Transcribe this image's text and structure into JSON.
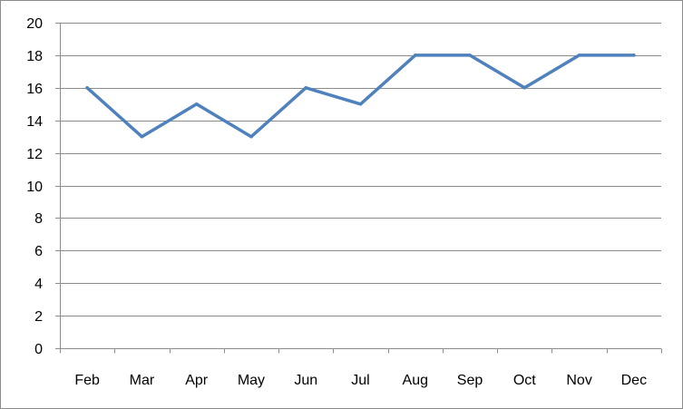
{
  "chart_data": {
    "type": "line",
    "title": "",
    "xlabel": "",
    "ylabel": "",
    "categories": [
      "Feb",
      "Mar",
      "Apr",
      "May",
      "Jun",
      "Jul",
      "Aug",
      "Sep",
      "Oct",
      "Nov",
      "Dec"
    ],
    "series": [
      {
        "values": [
          16,
          13,
          15,
          13,
          16,
          15,
          18,
          18,
          16,
          18,
          18
        ],
        "color": "#4f81bd"
      }
    ],
    "ylim": [
      0,
      20
    ],
    "yticks": [
      "0",
      "2",
      "4",
      "6",
      "8",
      "10",
      "12",
      "14",
      "16",
      "18",
      "20"
    ],
    "grid": "horizontal",
    "legend": "none"
  }
}
